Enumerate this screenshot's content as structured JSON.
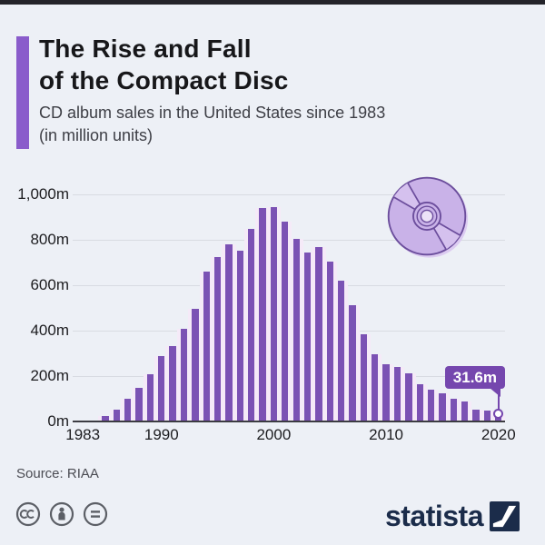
{
  "header": {
    "title_line1": "The Rise and Fall",
    "title_line2": "of the Compact Disc",
    "subtitle_line1": "CD album sales in the United States since 1983",
    "subtitle_line2": "(in million units)"
  },
  "chart_data": {
    "type": "bar",
    "title": "The Rise and Fall of the Compact Disc",
    "subtitle": "CD album sales in the United States since 1983 (in million units)",
    "x": [
      1983,
      1984,
      1985,
      1986,
      1987,
      1988,
      1989,
      1990,
      1991,
      1992,
      1993,
      1994,
      1995,
      1996,
      1997,
      1998,
      1999,
      2000,
      2001,
      2002,
      2003,
      2004,
      2005,
      2006,
      2007,
      2008,
      2009,
      2010,
      2011,
      2012,
      2013,
      2014,
      2015,
      2016,
      2017,
      2018,
      2019,
      2020
    ],
    "values": [
      0.8,
      5.8,
      22.6,
      53,
      102.1,
      149.7,
      207.2,
      286.5,
      333.3,
      407.5,
      495.4,
      662.1,
      722.9,
      778.9,
      753.1,
      847,
      938.9,
      942.5,
      881.9,
      803.3,
      746,
      767,
      705.4,
      619.7,
      511.1,
      384.7,
      296.6,
      253,
      240.8,
      210.9,
      165.4,
      140.8,
      122.9,
      99.4,
      87.7,
      52,
      47.5,
      31.6
    ],
    "ylim": [
      0,
      1000
    ],
    "yticks": [
      0,
      200,
      400,
      600,
      800,
      1000
    ],
    "ytick_labels": [
      "0m",
      "200m",
      "400m",
      "600m",
      "800m",
      "1,000m"
    ],
    "xticks": [
      1983,
      1990,
      2000,
      2010,
      2020
    ],
    "xtick_labels": [
      "1983",
      "1990",
      "2000",
      "2010",
      "2020"
    ],
    "grid": true,
    "legend": false,
    "bar_color": "#7b52b4",
    "annotation": {
      "year": 2020,
      "value": 31.6,
      "label": "31.6m"
    }
  },
  "icons": {
    "cd": "cd-disc-icon",
    "license": [
      "cc-icon",
      "attribution-icon",
      "nd-icon"
    ],
    "brand_mark": "statista-logo-icon"
  },
  "footer": {
    "source": "Source: RIAA",
    "brand": "statista"
  },
  "colors": {
    "background": "#edf0f6",
    "bar": "#7b52b4",
    "accent": "#8a5ccb",
    "callout": "#7547ae",
    "brand_navy": "#1b2c4a",
    "gridline": "#d8dbe2"
  }
}
